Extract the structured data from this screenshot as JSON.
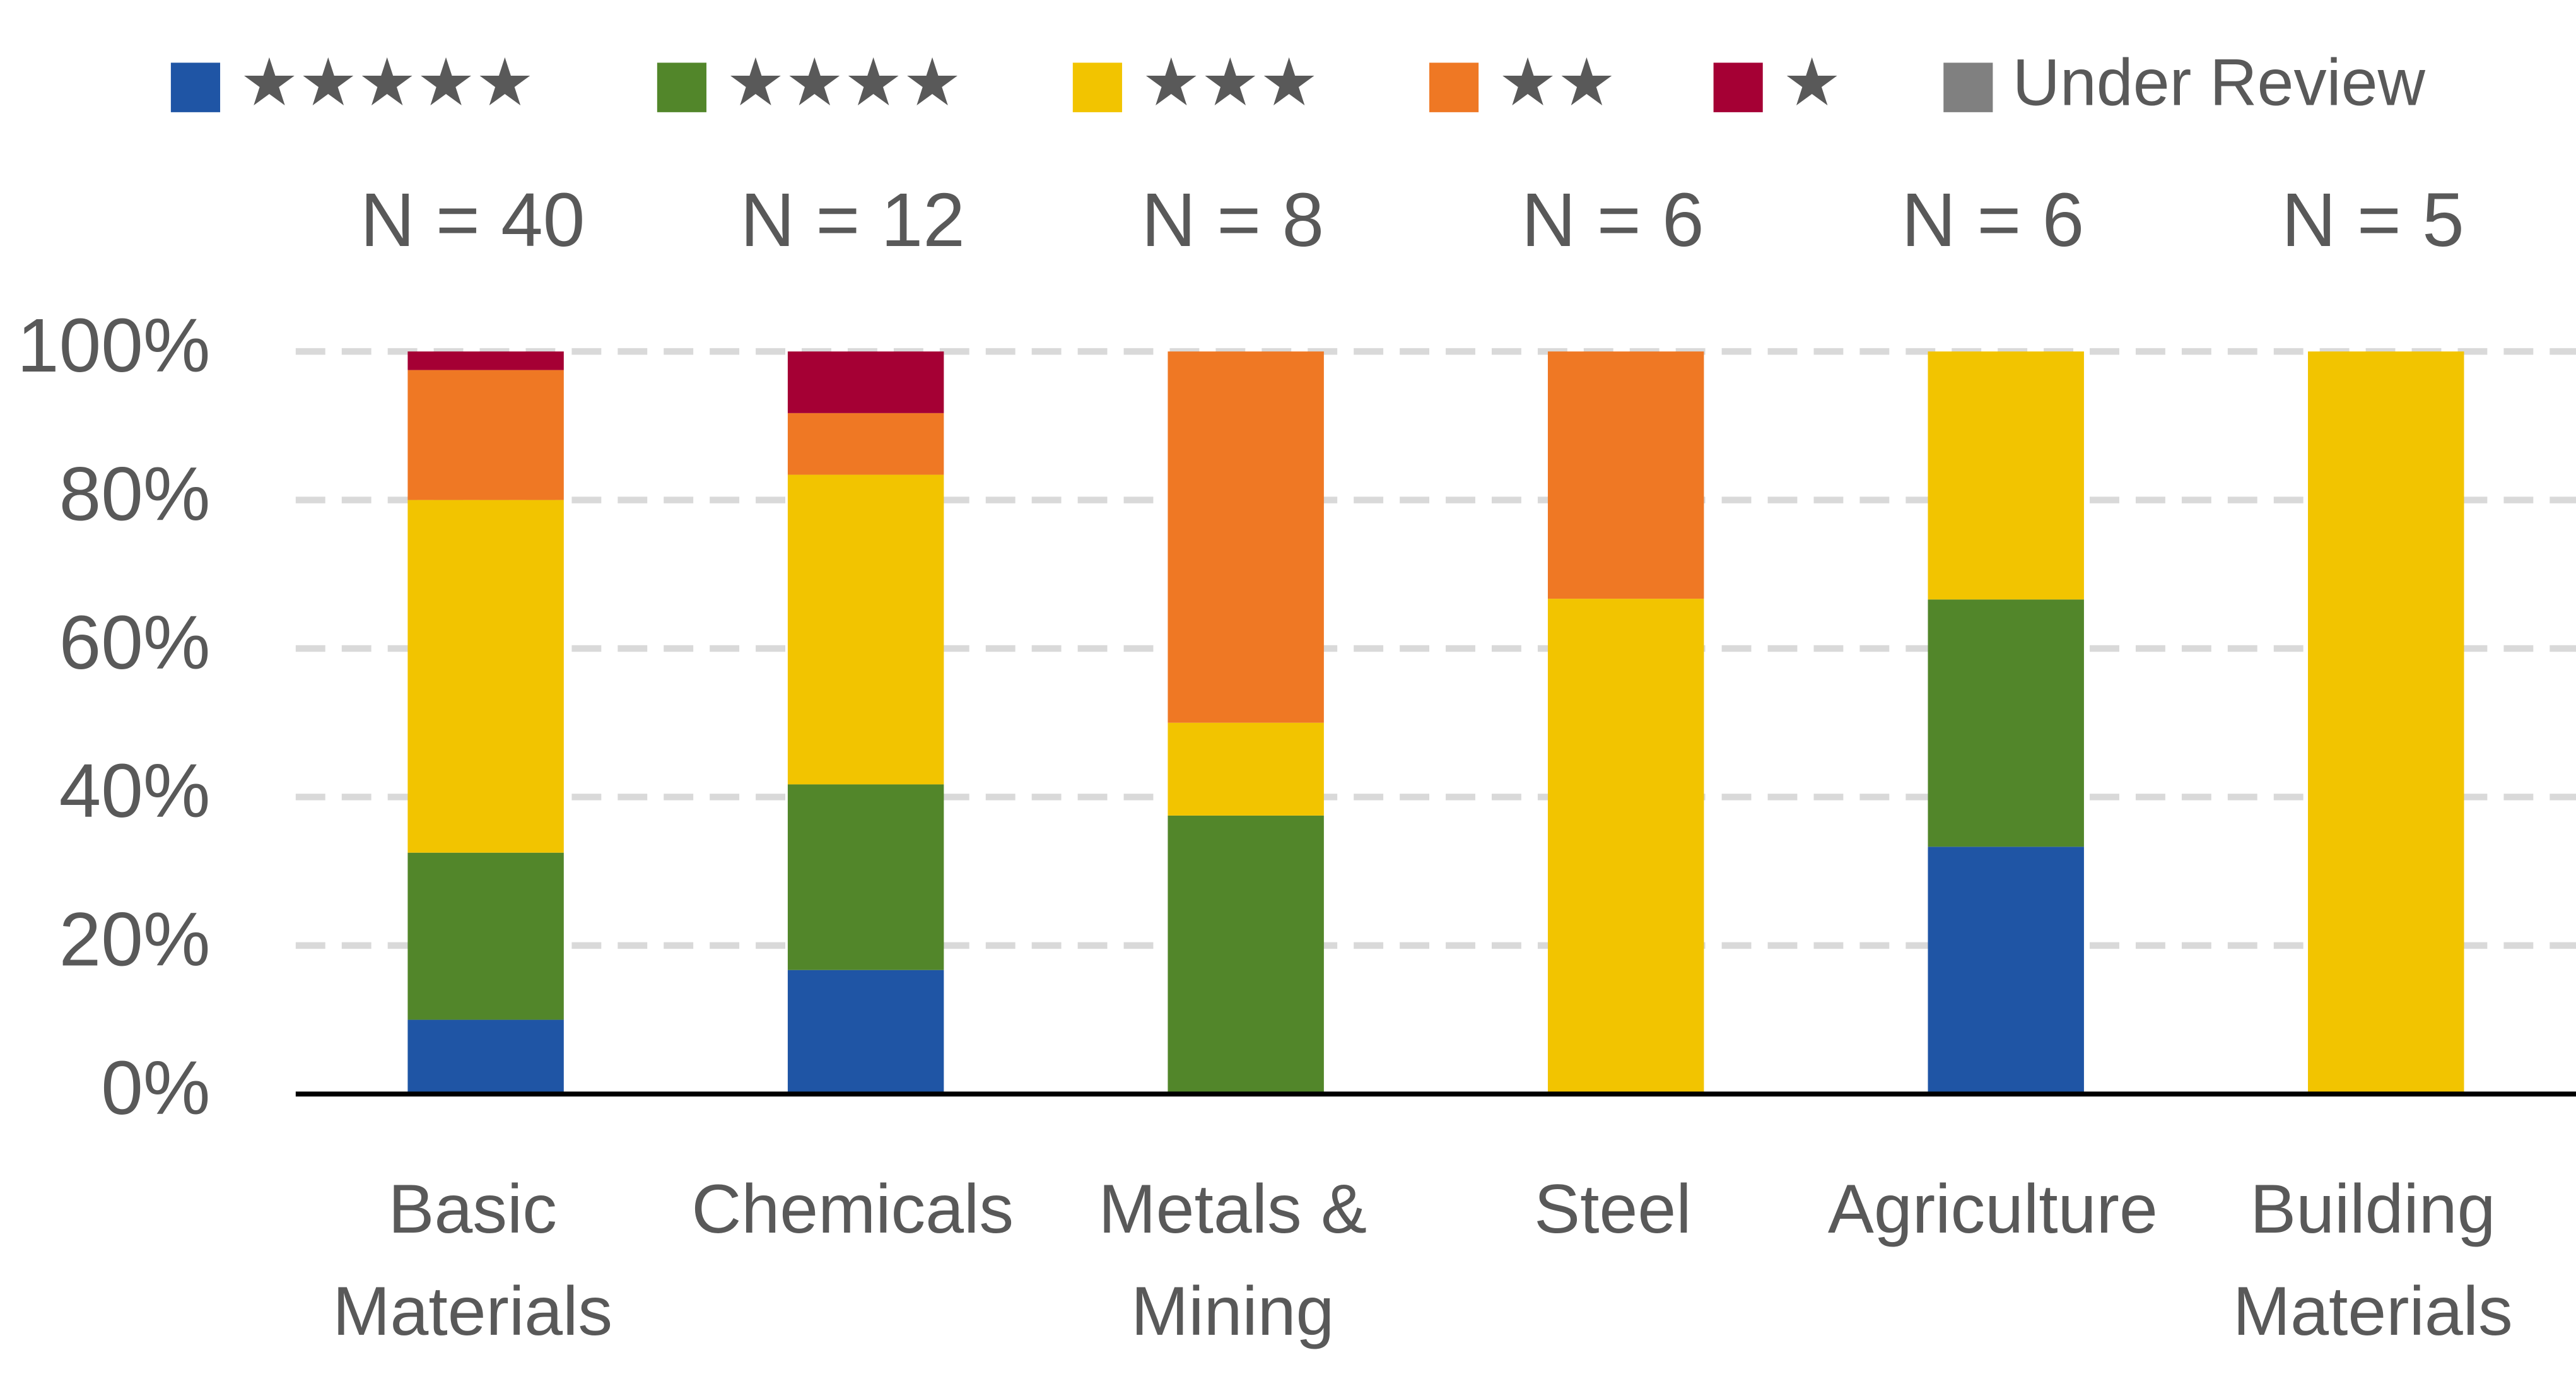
{
  "chart_data": {
    "type": "stacked_bar",
    "categories": [
      "Basic Materials",
      "Chemicals",
      "Metals & Mining",
      "Steel",
      "Agriculture",
      "Building Materials"
    ],
    "annotations": [
      "N = 40",
      "N = 12",
      "N = 8",
      "N = 6",
      "N = 6",
      "N = 5"
    ],
    "series": [
      {
        "name": "★★★★★",
        "color": "#1f55a5",
        "values": [
          10,
          16.7,
          0,
          0,
          33.3,
          0
        ]
      },
      {
        "name": "★★★★",
        "color": "#52862a",
        "values": [
          22.5,
          25,
          37.5,
          0,
          33.3,
          0
        ]
      },
      {
        "name": "★★★",
        "color": "#f2c400",
        "values": [
          47.5,
          41.7,
          12.5,
          66.7,
          33.4,
          100
        ]
      },
      {
        "name": "★★",
        "color": "#ef7824",
        "values": [
          17.5,
          8.3,
          50,
          33.3,
          0,
          0
        ]
      },
      {
        "name": "★",
        "color": "#a50034",
        "values": [
          2.5,
          8.3,
          0,
          0,
          0,
          0
        ]
      },
      {
        "name": "Under Review",
        "color": "#808080",
        "values": [
          0,
          0,
          0,
          0,
          0,
          0
        ]
      }
    ],
    "ylim": [
      0,
      100
    ],
    "yticks": [
      {
        "value": 0,
        "label": "0%"
      },
      {
        "value": 20,
        "label": "20%"
      },
      {
        "value": 40,
        "label": "40%"
      },
      {
        "value": 60,
        "label": "60%"
      },
      {
        "value": 80,
        "label": "80%"
      },
      {
        "value": 100,
        "label": "100%"
      }
    ],
    "grid": true,
    "legend": "top"
  }
}
